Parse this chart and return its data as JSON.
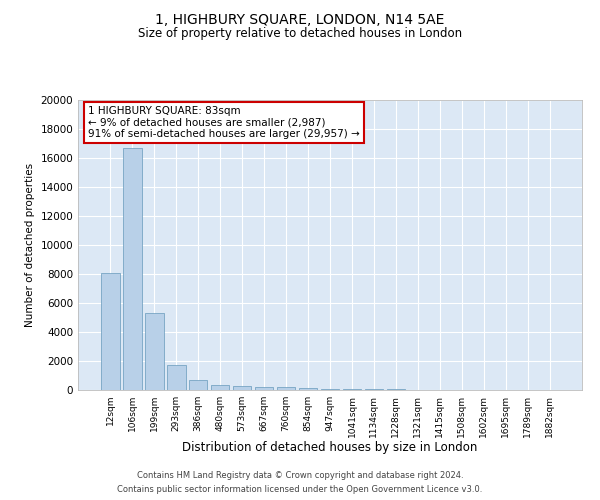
{
  "title": "1, HIGHBURY SQUARE, LONDON, N14 5AE",
  "subtitle": "Size of property relative to detached houses in London",
  "xlabel": "Distribution of detached houses by size in London",
  "ylabel": "Number of detached properties",
  "bar_color": "#b8d0e8",
  "bar_edge_color": "#6699bb",
  "background_color": "#dce8f5",
  "grid_color": "#ffffff",
  "annotation_box_color": "#cc0000",
  "annotation_line1": "1 HIGHBURY SQUARE: 83sqm",
  "annotation_line2": "← 9% of detached houses are smaller (2,987)",
  "annotation_line3": "91% of semi-detached houses are larger (29,957) →",
  "footer_line1": "Contains HM Land Registry data © Crown copyright and database right 2024.",
  "footer_line2": "Contains public sector information licensed under the Open Government Licence v3.0.",
  "categories": [
    "12sqm",
    "106sqm",
    "199sqm",
    "293sqm",
    "386sqm",
    "480sqm",
    "573sqm",
    "667sqm",
    "760sqm",
    "854sqm",
    "947sqm",
    "1041sqm",
    "1134sqm",
    "1228sqm",
    "1321sqm",
    "1415sqm",
    "1508sqm",
    "1602sqm",
    "1695sqm",
    "1789sqm",
    "1882sqm"
  ],
  "values": [
    8100,
    16700,
    5300,
    1750,
    700,
    350,
    280,
    230,
    180,
    130,
    90,
    70,
    55,
    40,
    30,
    25,
    20,
    18,
    15,
    12,
    10
  ],
  "ylim": [
    0,
    20000
  ],
  "yticks": [
    0,
    2000,
    4000,
    6000,
    8000,
    10000,
    12000,
    14000,
    16000,
    18000,
    20000
  ]
}
